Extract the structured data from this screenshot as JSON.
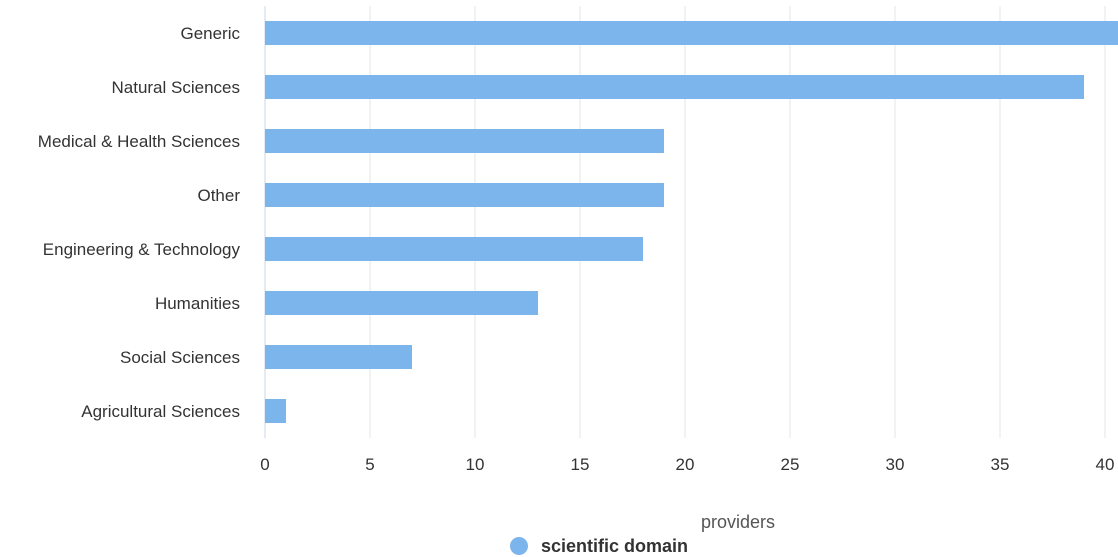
{
  "chart_data": {
    "type": "bar",
    "orientation": "horizontal",
    "categories": [
      "Generic",
      "Natural Sciences",
      "Medical & Health Sciences",
      "Other",
      "Engineering & Technology",
      "Humanities",
      "Social Sciences",
      "Agricultural Sciences"
    ],
    "series": [
      {
        "name": "scientific domain",
        "values": [
          41,
          39,
          19,
          19,
          18,
          13,
          7,
          1
        ]
      }
    ],
    "xlabel": "providers",
    "ylabel": "",
    "xlim": [
      0,
      40
    ],
    "xticks": [
      0,
      5,
      10,
      15,
      20,
      25,
      30,
      35,
      40
    ],
    "grid": true,
    "legend_position": "bottom-center",
    "colors": {
      "bar": "#7cb5ec",
      "grid": "#e6e6e6",
      "text": "#333333"
    }
  }
}
